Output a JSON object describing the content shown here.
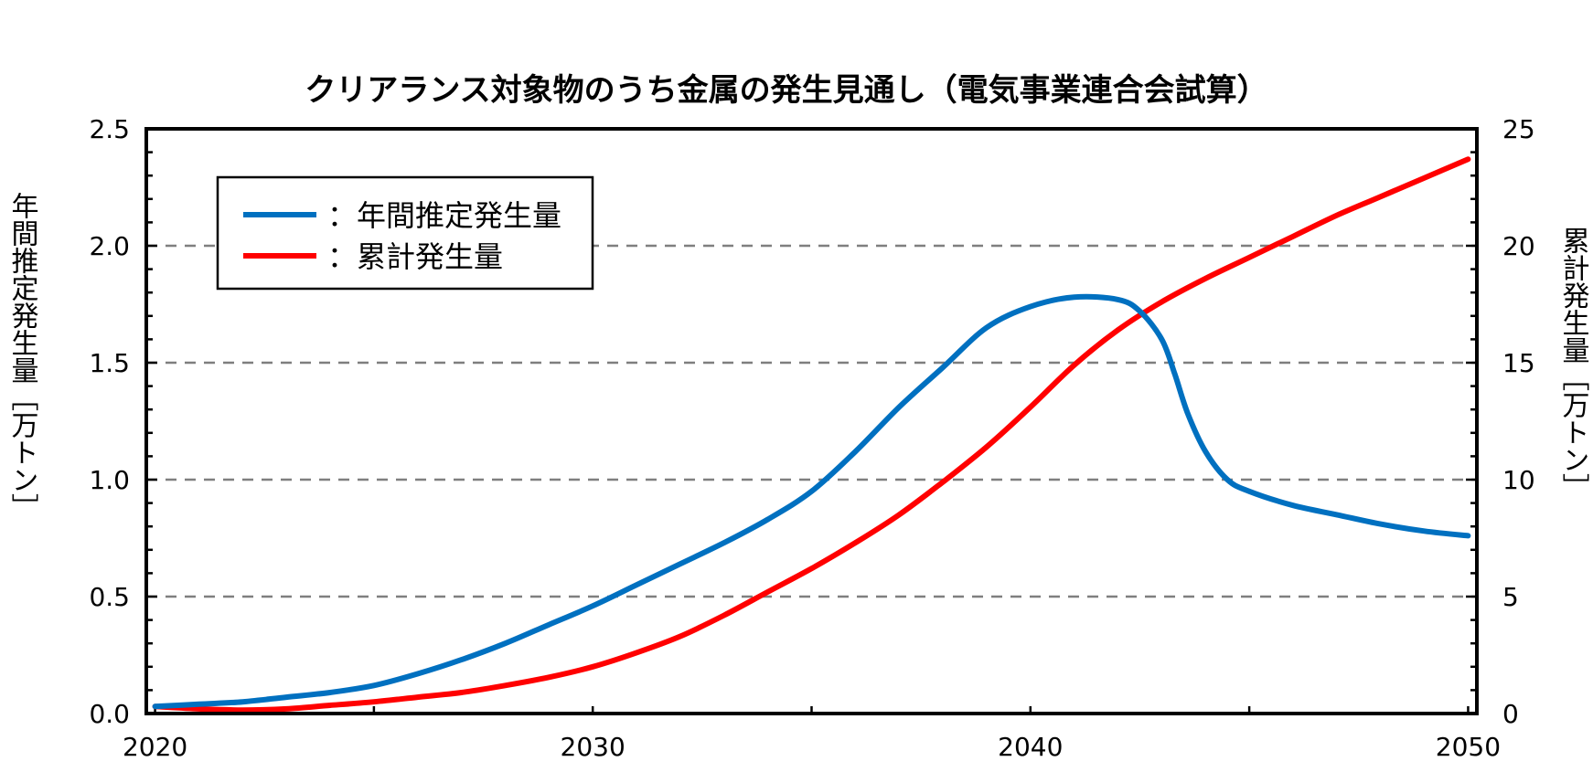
{
  "chart_data": {
    "type": "line",
    "title": "クリアランス対象物のうち金属の発生見通し（電気事業連合会試算）",
    "xlabel": "",
    "ylabel": "年間推定発生量［万トン］",
    "y2label": "累計発生量［万トン］",
    "xlim": [
      2019.8,
      2050.2
    ],
    "ylim": [
      0,
      2.5
    ],
    "y2lim": [
      0,
      25
    ],
    "x_ticks": [
      "2020",
      "2030",
      "2040",
      "2050"
    ],
    "y_ticks": [
      "0.0",
      "0.5",
      "1.0",
      "1.5",
      "2.0",
      "2.5"
    ],
    "y2_ticks": [
      "0",
      "5",
      "10",
      "15",
      "20",
      "25"
    ],
    "grid": "horizontal dashed",
    "legend_position": "top-left",
    "series": [
      {
        "name": "：年間推定発生量",
        "axis": "left",
        "color": "#0070C0",
        "x": [
          2020,
          2021,
          2022,
          2023,
          2024,
          2025,
          2026,
          2027,
          2028,
          2029,
          2030,
          2031,
          2032,
          2033,
          2034,
          2035,
          2036,
          2037,
          2038,
          2039,
          2040,
          2041,
          2042,
          2042.5,
          2043,
          2043.3,
          2043.6,
          2044,
          2044.5,
          2045,
          2046,
          2047,
          2048,
          2049,
          2050
        ],
        "values": [
          0.03,
          0.04,
          0.05,
          0.07,
          0.09,
          0.12,
          0.17,
          0.23,
          0.3,
          0.38,
          0.46,
          0.55,
          0.64,
          0.73,
          0.83,
          0.95,
          1.12,
          1.31,
          1.48,
          1.65,
          1.74,
          1.78,
          1.77,
          1.72,
          1.6,
          1.45,
          1.28,
          1.12,
          1.0,
          0.95,
          0.89,
          0.85,
          0.81,
          0.78,
          0.76
        ]
      },
      {
        "name": "：累計発生量",
        "axis": "right",
        "color": "#FF0000",
        "x": [
          2020,
          2021,
          2022,
          2023,
          2024,
          2025,
          2026,
          2027,
          2028,
          2029,
          2030,
          2031,
          2032,
          2033,
          2034,
          2035,
          2036,
          2037,
          2038,
          2039,
          2040,
          2041,
          2042,
          2043,
          2044,
          2045,
          2046,
          2047,
          2048,
          2049,
          2050
        ],
        "values": [
          0.3,
          0.2,
          0.15,
          0.2,
          0.35,
          0.5,
          0.7,
          0.9,
          1.2,
          1.55,
          2.0,
          2.6,
          3.3,
          4.2,
          5.2,
          6.2,
          7.3,
          8.5,
          9.9,
          11.4,
          13.1,
          14.9,
          16.4,
          17.6,
          18.6,
          19.5,
          20.4,
          21.3,
          22.1,
          22.9,
          23.7
        ]
      }
    ]
  }
}
